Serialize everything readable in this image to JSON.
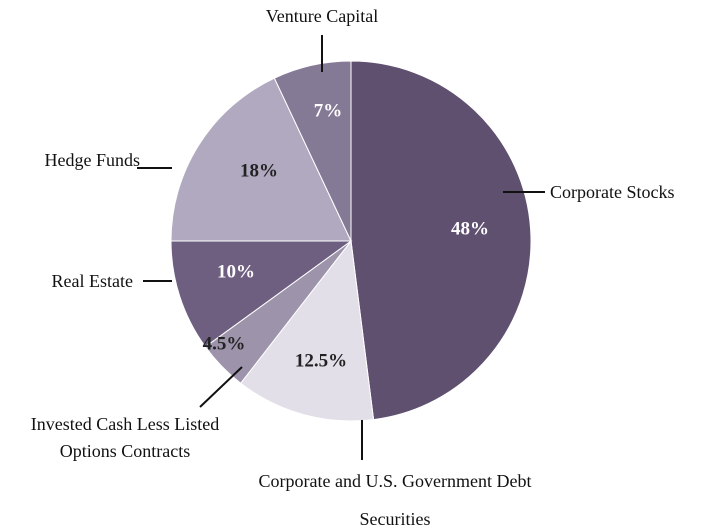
{
  "chart_data": {
    "type": "pie",
    "categories": [
      "Corporate Stocks",
      "Corporate and U.S. Government Debt Securities",
      "Invested Cash Less Listed Options Contracts",
      "Real Estate",
      "Hedge Funds",
      "Venture Capital"
    ],
    "values": [
      48,
      12.5,
      4.5,
      10,
      18,
      7
    ],
    "value_labels": [
      "48%",
      "12.5%",
      "4.5%",
      "10%",
      "18%",
      "7%"
    ],
    "colors": [
      "#5f5070",
      "#e2dfe9",
      "#9d94ab",
      "#6e5f80",
      "#b1a9c0",
      "#857a96"
    ]
  }
}
